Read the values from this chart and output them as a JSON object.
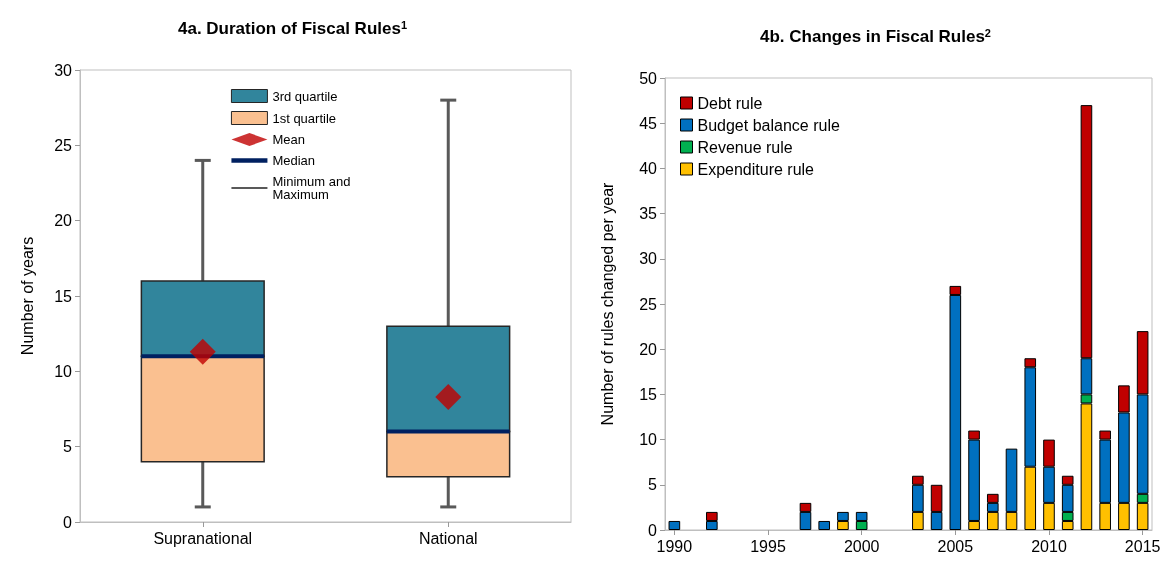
{
  "chart_data": [
    {
      "type": "box",
      "title": "4a. Duration of Fiscal Rules$^{1}$",
      "ylabel": "Number of years",
      "categories": [
        "Supranational",
        "National"
      ],
      "boxes": [
        {
          "low": 1,
          "q1": 4,
          "median": 11,
          "q3": 16,
          "high": 24,
          "mean": 11.3
        },
        {
          "low": 1,
          "q1": 3,
          "median": 6,
          "q3": 13,
          "high": 28,
          "mean": 8.3
        }
      ],
      "series": [
        {
          "name": "3rd quartile",
          "color": "#31859c",
          "values": [
            null,
            null
          ]
        },
        {
          "name": "1st quartile",
          "color": "#fac090",
          "values": [
            null,
            null
          ]
        },
        {
          "name": "Mean",
          "color": "#c00000",
          "values": [
            null,
            null
          ]
        },
        {
          "name": "Median",
          "color": "#002060",
          "values": [
            null,
            null
          ]
        },
        {
          "name": "Minimum and Maximum",
          "color": "#595959",
          "values": [
            null,
            null
          ]
        }
      ],
      "ylim": [
        0,
        30
      ],
      "yticks": [
        0,
        5,
        10,
        15,
        20,
        25,
        30
      ],
      "grid": false,
      "legend": "top"
    },
    {
      "type": "bar",
      "title": "4b. Changes in Fiscal Rules$^{2}$",
      "ylabel": "Number of rules changed per year",
      "stacked": true,
      "categories": [
        "1990",
        null,
        null,
        null,
        null,
        "1995",
        null,
        null,
        null,
        null,
        "2000",
        null,
        null,
        null,
        null,
        "2005",
        null,
        null,
        null,
        null,
        "2010",
        null,
        null,
        null,
        null,
        "2015"
      ],
      "series": [
        {
          "name": "Expenditure rule",
          "color": "#ffc000",
          "values": [
            0,
            0,
            0,
            0,
            0,
            0,
            0,
            0,
            0,
            1,
            0,
            0,
            0,
            2,
            0,
            0,
            1,
            2,
            2,
            7,
            3,
            1,
            14,
            3,
            3,
            3
          ]
        },
        {
          "name": "Revenue rule",
          "color": "#00b050",
          "values": [
            0,
            0,
            0,
            0,
            0,
            0,
            0,
            0,
            0,
            0,
            1,
            0,
            0,
            0,
            0,
            0,
            0,
            0,
            0,
            0,
            0,
            1,
            1,
            0,
            0,
            1
          ]
        },
        {
          "name": "Budget balance rule",
          "color": "#0070c0",
          "values": [
            1,
            0,
            1,
            0,
            0,
            0,
            0,
            2,
            1,
            1,
            1,
            0,
            0,
            3,
            2,
            26,
            9,
            1,
            7,
            11,
            4,
            3,
            4,
            7,
            10,
            11
          ]
        },
        {
          "name": "Debt rule",
          "color": "#c00000",
          "values": [
            0,
            0,
            1,
            0,
            0,
            0,
            0,
            1,
            0,
            0,
            0,
            0,
            0,
            1,
            3,
            1,
            1,
            1,
            0,
            1,
            3,
            1,
            28,
            1,
            3,
            7
          ]
        }
      ],
      "ylim": [
        0,
        50
      ],
      "yticks": [
        0,
        5,
        10,
        15,
        20,
        25,
        30,
        35,
        40,
        45,
        50
      ],
      "grid": false,
      "legend": "top left"
    }
  ]
}
